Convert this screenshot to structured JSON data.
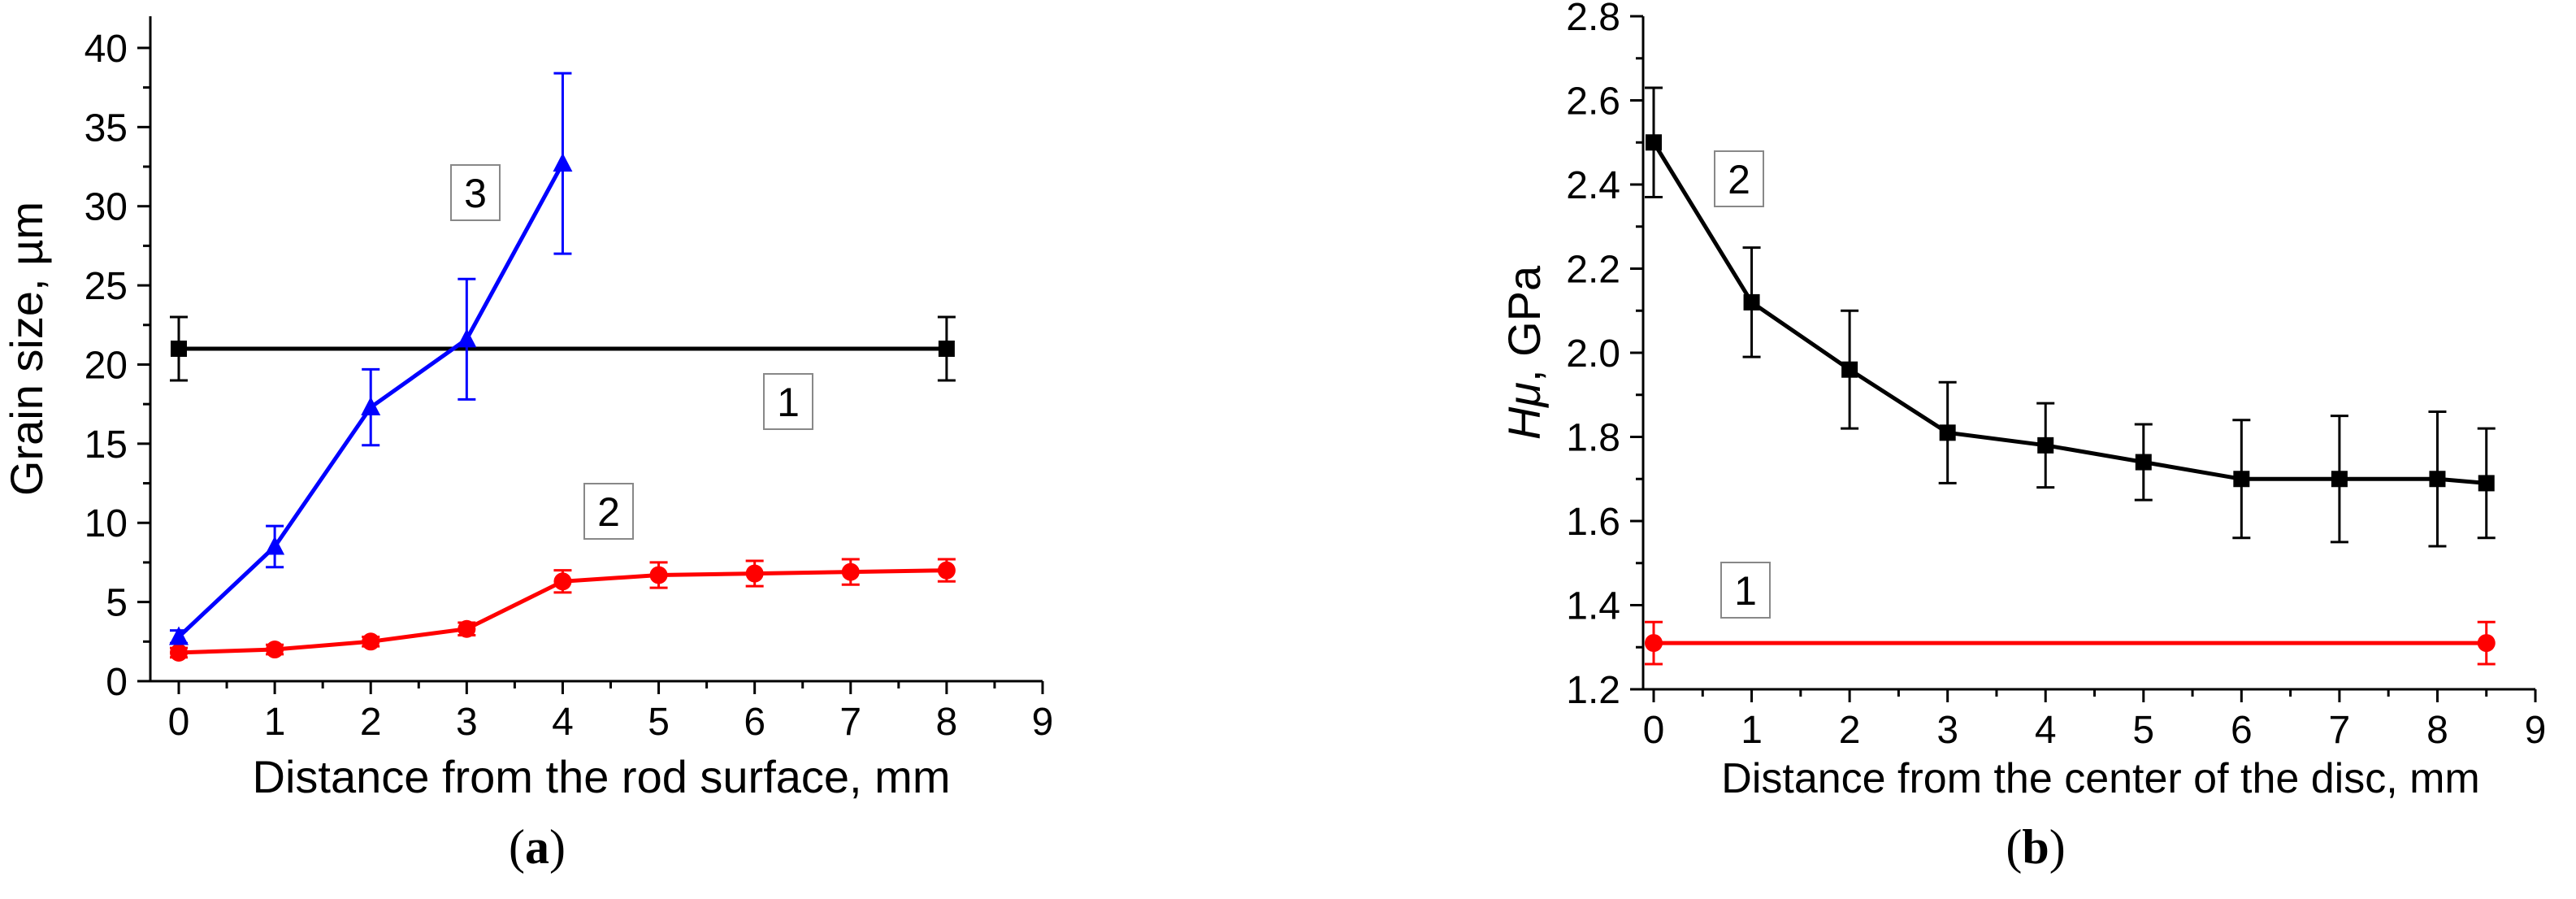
{
  "chart_data": [
    {
      "id": "a",
      "type": "line",
      "caption_open": "(",
      "caption_letter": "a",
      "caption_close": ")",
      "title": "",
      "xlabel": "Distance from the rod surface, mm",
      "ylabel": "Grain size, µm",
      "xlim": [
        0,
        9
      ],
      "ylim": [
        0,
        42
      ],
      "xticks": [
        0,
        1,
        2,
        3,
        4,
        5,
        6,
        7,
        8,
        9
      ],
      "yticks": [
        0,
        5,
        10,
        15,
        20,
        25,
        30,
        35,
        40
      ],
      "grid": false,
      "series": [
        {
          "label": "1",
          "color": "#000000",
          "marker": "square",
          "x": [
            0,
            8
          ],
          "y": [
            21,
            21
          ],
          "err": [
            2,
            2
          ]
        },
        {
          "label": "2",
          "color": "#ff0000",
          "marker": "circle",
          "x": [
            0,
            1,
            2,
            3,
            4,
            5,
            6,
            7,
            8
          ],
          "y": [
            1.8,
            2.0,
            2.5,
            3.3,
            6.3,
            6.7,
            6.8,
            6.9,
            7.0
          ],
          "err": [
            0.3,
            0.3,
            0.3,
            0.4,
            0.7,
            0.8,
            0.8,
            0.8,
            0.7
          ]
        },
        {
          "label": "3",
          "color": "#0000ff",
          "marker": "triangle",
          "x": [
            0,
            1,
            2,
            3,
            4
          ],
          "y": [
            2.8,
            8.5,
            17.3,
            21.6,
            32.7
          ],
          "err": [
            0.4,
            1.3,
            2.4,
            3.8,
            5.7
          ]
        }
      ]
    },
    {
      "id": "b",
      "type": "line",
      "caption_open": "(",
      "caption_letter": "b",
      "caption_close": ")",
      "title": "",
      "xlabel": "Distance from the center of the disc, mm",
      "ylabel_italic": "Hμ",
      "ylabel_rest": ", GPa",
      "xlim": [
        0,
        9
      ],
      "ylim": [
        1.2,
        2.8
      ],
      "xticks": [
        0,
        1,
        2,
        3,
        4,
        5,
        6,
        7,
        8,
        9
      ],
      "yticks": [
        "1.2",
        "1.4",
        "1.6",
        "1.8",
        "2.0",
        "2.2",
        "2.4",
        "2.6",
        "2.8"
      ],
      "grid": false,
      "series": [
        {
          "label": "1",
          "color": "#ff0000",
          "marker": "circle",
          "x": [
            0,
            8.5
          ],
          "y": [
            1.31,
            1.31
          ],
          "err": [
            0.05,
            0.05
          ]
        },
        {
          "label": "2",
          "color": "#000000",
          "marker": "square",
          "x": [
            0,
            1,
            2,
            3,
            4,
            5,
            6,
            7,
            8,
            8.5
          ],
          "y": [
            2.5,
            2.12,
            1.96,
            1.81,
            1.78,
            1.74,
            1.7,
            1.7,
            1.7,
            1.69
          ],
          "err": [
            0.13,
            0.13,
            0.14,
            0.12,
            0.1,
            0.09,
            0.14,
            0.15,
            0.16,
            0.13
          ]
        }
      ]
    }
  ]
}
